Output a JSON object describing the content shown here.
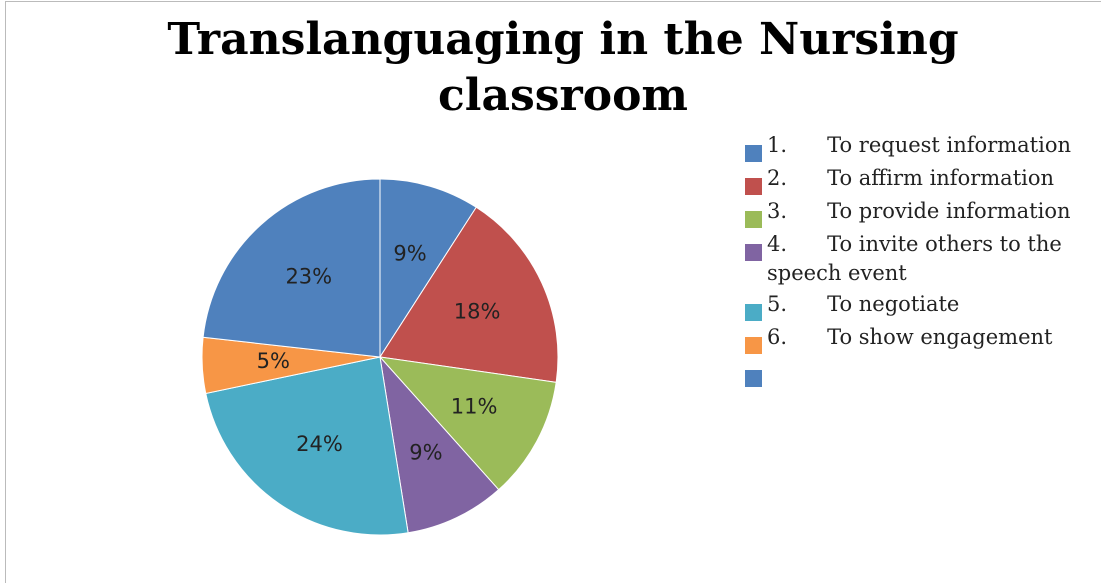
{
  "chart_data": {
    "type": "pie",
    "title": "Translanguaging in the Nursing classroom",
    "categories": [
      "1.      To request information",
      "2.      To affirm information",
      "3.      To provide information",
      "4.      To invite others to the speech event",
      "5.      To negotiate",
      "6.      To show engagement",
      null
    ],
    "values": [
      9,
      18,
      11,
      9,
      24,
      5,
      23
    ],
    "value_labels": [
      "9%",
      "18%",
      "11%",
      "9%",
      "24%",
      "5%",
      "23%"
    ],
    "colors": [
      "#4f81bd",
      "#c0504d",
      "#9bbb59",
      "#8064a2",
      "#4bacc6",
      "#f79646",
      "#4f81bd"
    ]
  }
}
